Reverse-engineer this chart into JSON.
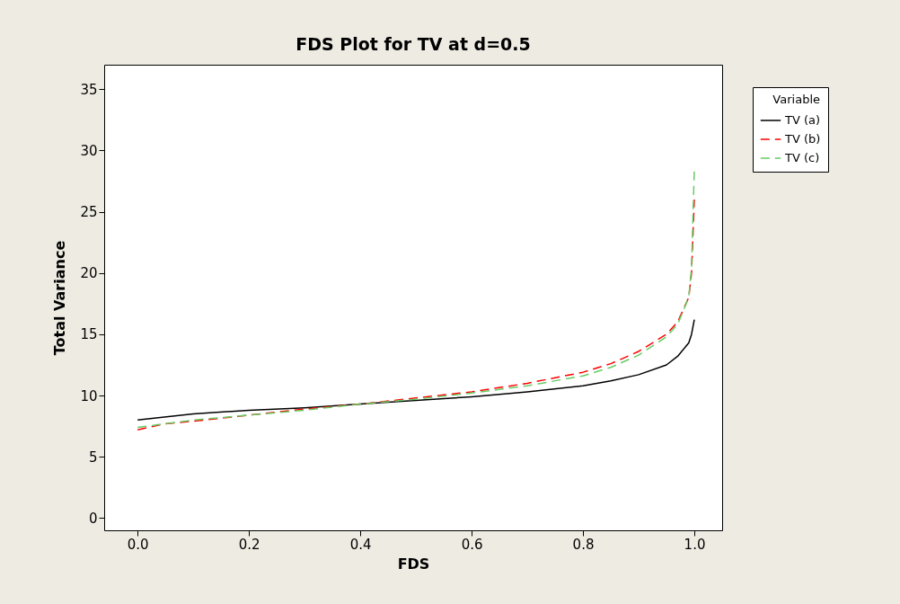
{
  "chart_data": {
    "type": "line",
    "title": "FDS Plot for TV at d=0.5",
    "xlabel": "FDS",
    "ylabel": "Total Variance",
    "legend_title": "Variable",
    "legend": "right",
    "grid": false,
    "xlim": [
      -0.06,
      1.05
    ],
    "xticks": [
      {
        "value": 0,
        "label": "0.0"
      },
      {
        "value": 0.2,
        "label": "0.2"
      },
      {
        "value": 0.4,
        "label": "0.4"
      },
      {
        "value": 0.6,
        "label": "0.6"
      },
      {
        "value": 0.8,
        "label": "0.8"
      },
      {
        "value": 1,
        "label": "1.0"
      }
    ],
    "ylim": [
      -1,
      37
    ],
    "yticks": [
      0,
      5,
      10,
      15,
      20,
      25,
      30,
      35
    ],
    "series": [
      {
        "name": "TV (a)",
        "color": "#000000",
        "line_style": "solid",
        "x": [
          0,
          0.1,
          0.2,
          0.3,
          0.4,
          0.5,
          0.6,
          0.7,
          0.8,
          0.85,
          0.9,
          0.95,
          0.97,
          0.99,
          0.995,
          1.0
        ],
        "values": [
          8.0,
          8.5,
          8.8,
          9.0,
          9.3,
          9.6,
          9.9,
          10.3,
          10.8,
          11.2,
          11.7,
          12.5,
          13.2,
          14.3,
          15.0,
          16.2
        ]
      },
      {
        "name": "TV (b)",
        "color": "#ff0000",
        "line_style": "dashed",
        "x": [
          0,
          0.05,
          0.1,
          0.2,
          0.3,
          0.4,
          0.5,
          0.6,
          0.7,
          0.8,
          0.85,
          0.9,
          0.95,
          0.97,
          0.99,
          0.995,
          1.0
        ],
        "values": [
          7.2,
          7.7,
          7.9,
          8.4,
          8.9,
          9.3,
          9.8,
          10.3,
          11.0,
          11.9,
          12.6,
          13.6,
          15.0,
          16.0,
          18.0,
          20.0,
          26.0
        ]
      },
      {
        "name": "TV (c)",
        "color": "#66cc66",
        "line_style": "dashed",
        "x": [
          0,
          0.1,
          0.2,
          0.3,
          0.4,
          0.5,
          0.6,
          0.7,
          0.8,
          0.85,
          0.9,
          0.95,
          0.97,
          0.99,
          0.995,
          1.0
        ],
        "values": [
          7.4,
          8.0,
          8.4,
          8.8,
          9.3,
          9.7,
          10.2,
          10.8,
          11.6,
          12.3,
          13.3,
          14.8,
          15.8,
          18.0,
          20.5,
          28.5
        ]
      }
    ]
  }
}
